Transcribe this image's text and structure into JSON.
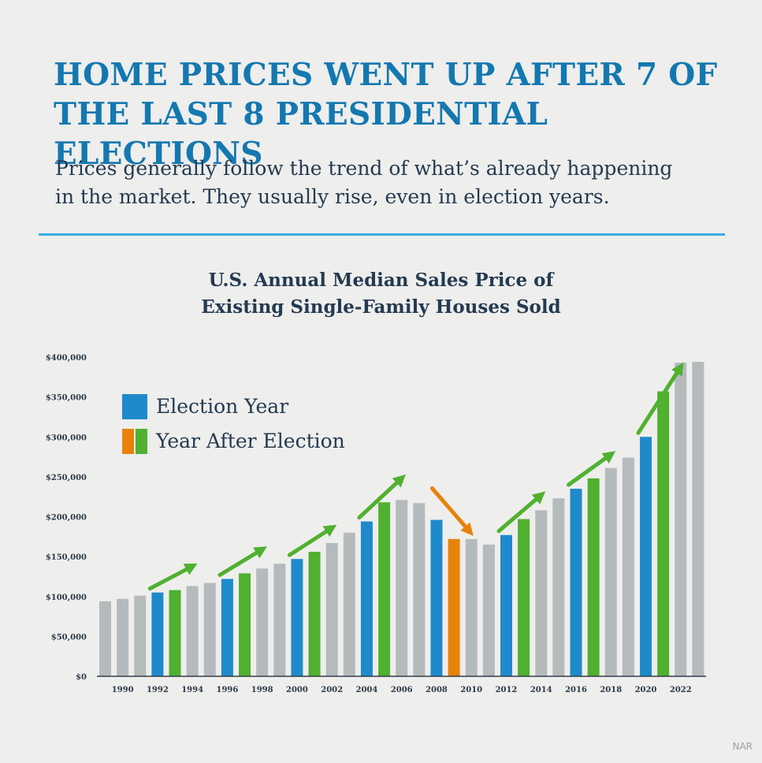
{
  "header": {
    "headline_line1": "HOME PRICES WENT UP AFTER 7 OF",
    "headline_line2": "THE LAST 8 PRESIDENTIAL ELECTIONS",
    "subtitle_line1": "Prices generally follow the trend of what’s already happening",
    "subtitle_line2": "in the market. They usually rise, even in election years."
  },
  "source": "NAR",
  "colors": {
    "election": "#1f8acb",
    "after_up": "#50b030",
    "after_down": "#e8820c",
    "other": "#b5babd",
    "rule": "#3aaee2",
    "headline": "#1478b0"
  },
  "chart_data": {
    "type": "bar",
    "title_line1": "U.S. Annual Median Sales Price of",
    "title_line2": "Existing Single-Family Houses Sold",
    "xlabel": "",
    "ylabel": "",
    "ylim": [
      0,
      400000
    ],
    "yticks": [
      0,
      50000,
      100000,
      150000,
      200000,
      250000,
      300000,
      350000,
      400000
    ],
    "ytick_labels": [
      "$0",
      "$50,000",
      "$100,000",
      "$150,000",
      "$200,000",
      "$250,000",
      "$300,000",
      "$350,000",
      "$400,000"
    ],
    "categories": [
      1989,
      1990,
      1991,
      1992,
      1993,
      1994,
      1995,
      1996,
      1997,
      1998,
      1999,
      2000,
      2001,
      2002,
      2003,
      2004,
      2005,
      2006,
      2007,
      2008,
      2009,
      2010,
      2011,
      2012,
      2013,
      2014,
      2015,
      2016,
      2017,
      2018,
      2019,
      2020,
      2021,
      2022,
      2023
    ],
    "xtick_labels": [
      "1990",
      "1992",
      "1994",
      "1996",
      "1998",
      "2000",
      "2002",
      "2004",
      "2006",
      "2008",
      "2010",
      "2012",
      "2014",
      "2016",
      "2018",
      "2020",
      "2022"
    ],
    "values": [
      94000,
      97000,
      101000,
      105000,
      108000,
      113000,
      117000,
      122000,
      129000,
      135000,
      141000,
      147000,
      156000,
      167000,
      180000,
      194000,
      218000,
      221000,
      217000,
      196000,
      172000,
      172000,
      165000,
      177000,
      197000,
      208000,
      223000,
      235000,
      248000,
      261000,
      274000,
      300000,
      357000,
      393000,
      394000
    ],
    "bar_types": [
      "other",
      "other",
      "other",
      "election",
      "after_up",
      "other",
      "other",
      "election",
      "after_up",
      "other",
      "other",
      "election",
      "after_up",
      "other",
      "other",
      "election",
      "after_up",
      "other",
      "other",
      "election",
      "after_down",
      "other",
      "other",
      "election",
      "after_up",
      "other",
      "other",
      "election",
      "after_up",
      "other",
      "other",
      "election",
      "after_up",
      "other",
      "other"
    ],
    "trend_arrows": [
      {
        "from": 1992,
        "to": 1993,
        "direction": "up"
      },
      {
        "from": 1996,
        "to": 1997,
        "direction": "up"
      },
      {
        "from": 2000,
        "to": 2001,
        "direction": "up"
      },
      {
        "from": 2004,
        "to": 2005,
        "direction": "up"
      },
      {
        "from": 2008,
        "to": 2009,
        "direction": "down"
      },
      {
        "from": 2012,
        "to": 2013,
        "direction": "up"
      },
      {
        "from": 2016,
        "to": 2017,
        "direction": "up"
      },
      {
        "from": 2020,
        "to": 2021,
        "direction": "up"
      }
    ],
    "legend": {
      "position": "top-left",
      "election_label": "Election Year",
      "after_label": "Year After Election"
    }
  }
}
